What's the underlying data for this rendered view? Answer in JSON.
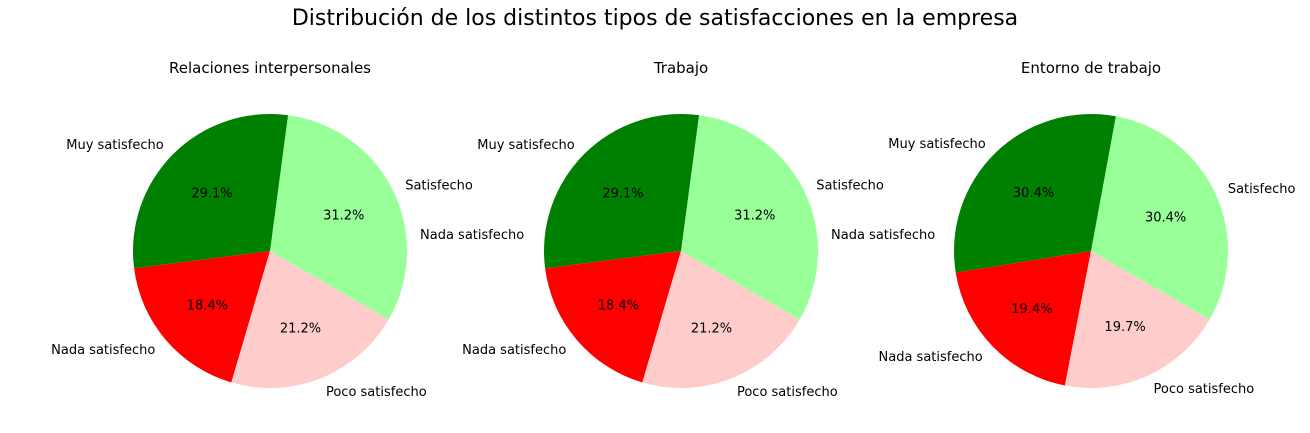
{
  "title": "Distribución de los distintos tipos de satisfacciones en la empresa",
  "colors": {
    "muy_satisfecho": "#008000",
    "nada_satisfecho": "#ff0000",
    "poco_satisfecho": "#ffcccc",
    "satisfecho": "#99ff99"
  },
  "chart_data": [
    {
      "type": "pie",
      "title": "Relaciones interpersonales",
      "slices": [
        {
          "label": "Satisfecho",
          "value": 31.2,
          "pct": "31.2%",
          "color": "#99ff99"
        },
        {
          "label": "Muy satisfecho",
          "value": 29.1,
          "pct": "29.1%",
          "color": "#008000"
        },
        {
          "label": "Nada satisfecho",
          "value": 18.4,
          "pct": "18.4%",
          "color": "#ff0000"
        },
        {
          "label": "Poco satisfecho",
          "value": 21.2,
          "pct": "21.2%",
          "color": "#ffcccc"
        }
      ],
      "extra_labels": [
        "Nada satisfecho"
      ]
    },
    {
      "type": "pie",
      "title": "Trabajo",
      "slices": [
        {
          "label": "Satisfecho",
          "value": 31.2,
          "pct": "31.2%",
          "color": "#99ff99"
        },
        {
          "label": "Muy satisfecho",
          "value": 29.1,
          "pct": "29.1%",
          "color": "#008000"
        },
        {
          "label": "Nada satisfecho",
          "value": 18.4,
          "pct": "18.4%",
          "color": "#ff0000"
        },
        {
          "label": "Poco satisfecho",
          "value": 21.2,
          "pct": "21.2%",
          "color": "#ffcccc"
        }
      ],
      "extra_labels": [
        "Nada satisfecho"
      ]
    },
    {
      "type": "pie",
      "title": "Entorno de trabajo",
      "slices": [
        {
          "label": "Satisfecho",
          "value": 30.4,
          "pct": "30.4%",
          "color": "#99ff99"
        },
        {
          "label": "Muy satisfecho",
          "value": 30.4,
          "pct": "30.4%",
          "color": "#008000"
        },
        {
          "label": "Nada satisfecho",
          "value": 19.4,
          "pct": "19.4%",
          "color": "#ff0000"
        },
        {
          "label": "Poco satisfecho",
          "value": 19.7,
          "pct": "19.7%",
          "color": "#ffcccc"
        }
      ],
      "extra_labels": []
    }
  ]
}
